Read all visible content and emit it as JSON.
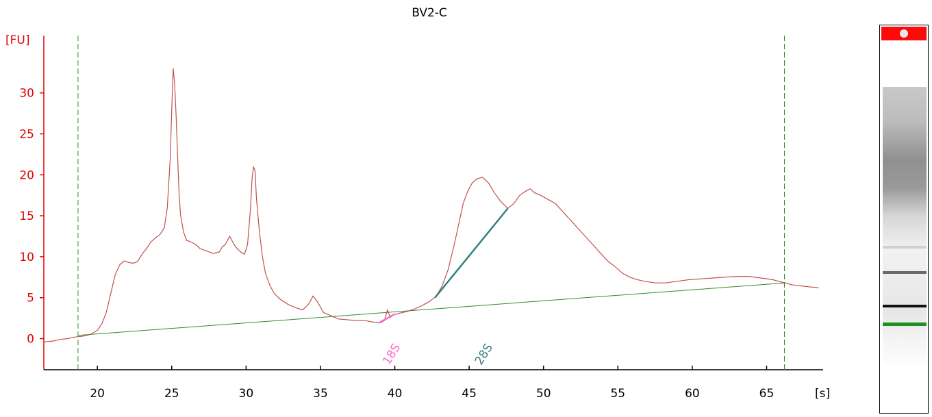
{
  "chart_data": {
    "type": "line",
    "title": "BV2-C",
    "ylabel": "[FU]",
    "xlabel": "[s]",
    "xlim": [
      16.4,
      68.8
    ],
    "ylim": [
      -3.8,
      37.0
    ],
    "xticks": [
      20,
      25,
      30,
      35,
      40,
      45,
      50,
      55,
      60,
      65
    ],
    "yticks": [
      0,
      5,
      10,
      15,
      20,
      25,
      30
    ],
    "grid": false,
    "colors": {
      "trace": "#c0504d",
      "baseline": "#2e8b2e",
      "axis": "#e00000",
      "marker_18s": "#ff66cc",
      "marker_28s": "#2f7f7f",
      "window": "#2e8b2e"
    },
    "window_markers": [
      18.7,
      66.2
    ],
    "baseline": {
      "x": [
        18.7,
        66.2
      ],
      "y": [
        0.4,
        6.8
      ]
    },
    "peaks": [
      {
        "label": "18S",
        "x": 39.6,
        "segment_x": [
          39.0,
          40.0
        ],
        "segment_y": [
          2.0,
          3.0
        ]
      },
      {
        "label": "28S",
        "x": 45.8,
        "segment_x": [
          42.7,
          47.6
        ],
        "segment_y": [
          5.0,
          15.9
        ]
      }
    ],
    "series": [
      {
        "x": [
          16.4,
          17.0,
          17.5,
          18.0,
          18.5,
          19.0,
          19.5,
          20.0,
          20.3,
          20.6,
          20.9,
          21.2,
          21.5,
          21.8,
          22.1,
          22.4,
          22.7,
          23.0,
          23.3,
          23.6,
          23.9,
          24.2,
          24.5,
          24.7,
          24.9,
          25.0,
          25.1,
          25.2,
          25.3,
          25.4,
          25.5,
          25.6,
          25.8,
          26.0,
          26.3,
          26.6,
          26.9,
          27.2,
          27.5,
          27.8,
          28.0,
          28.2,
          28.4,
          28.6,
          28.9,
          29.1,
          29.3,
          29.5,
          29.7,
          29.9,
          30.1,
          30.3,
          30.4,
          30.5,
          30.6,
          30.7,
          30.9,
          31.1,
          31.3,
          31.6,
          31.9,
          32.3,
          32.8,
          33.3,
          33.8,
          34.2,
          34.5,
          34.8,
          35.2,
          35.7,
          36.2,
          36.8,
          37.4,
          38.0,
          38.6,
          39.0,
          39.3,
          39.5,
          39.7,
          39.9,
          40.3,
          40.8,
          41.3,
          41.8,
          42.3,
          42.8,
          43.2,
          43.6,
          44.0,
          44.3,
          44.6,
          44.9,
          45.2,
          45.5,
          45.9,
          46.3,
          46.7,
          47.1,
          47.6,
          48.0,
          48.4,
          48.8,
          49.1,
          49.4,
          49.8,
          50.3,
          50.8,
          51.3,
          51.8,
          52.3,
          52.8,
          53.3,
          53.8,
          54.3,
          54.8,
          55.3,
          55.8,
          56.3,
          56.8,
          57.5,
          58.2,
          59.0,
          59.8,
          60.6,
          61.4,
          62.2,
          63.0,
          63.8,
          64.6,
          65.4,
          66.0,
          66.3,
          66.6,
          67.0,
          67.5,
          68.0,
          68.5
        ],
        "y": [
          -0.4,
          -0.3,
          -0.1,
          0.0,
          0.2,
          0.3,
          0.5,
          1.0,
          1.8,
          3.2,
          5.5,
          7.8,
          9.0,
          9.5,
          9.3,
          9.2,
          9.4,
          10.3,
          11.0,
          11.8,
          12.3,
          12.7,
          13.5,
          16.0,
          22.0,
          28.0,
          33.0,
          31.0,
          27.0,
          22.0,
          17.5,
          15.0,
          13.0,
          12.0,
          11.8,
          11.5,
          11.0,
          10.8,
          10.6,
          10.4,
          10.5,
          10.6,
          11.2,
          11.5,
          12.5,
          11.8,
          11.2,
          10.8,
          10.5,
          10.3,
          11.5,
          16.0,
          19.5,
          21.0,
          20.5,
          17.0,
          13.0,
          10.0,
          8.0,
          6.5,
          5.5,
          4.8,
          4.2,
          3.8,
          3.5,
          4.2,
          5.2,
          4.5,
          3.2,
          2.8,
          2.4,
          2.3,
          2.2,
          2.2,
          2.0,
          1.9,
          2.2,
          3.5,
          2.6,
          2.9,
          3.1,
          3.3,
          3.6,
          4.0,
          4.5,
          5.2,
          6.5,
          8.5,
          11.5,
          14.0,
          16.5,
          18.0,
          19.0,
          19.5,
          19.7,
          19.0,
          17.8,
          16.8,
          15.9,
          16.5,
          17.5,
          18.0,
          18.3,
          17.8,
          17.5,
          17.0,
          16.5,
          15.5,
          14.5,
          13.5,
          12.5,
          11.5,
          10.5,
          9.5,
          8.8,
          8.0,
          7.5,
          7.2,
          7.0,
          6.8,
          6.8,
          7.0,
          7.2,
          7.3,
          7.4,
          7.5,
          7.6,
          7.6,
          7.4,
          7.2,
          6.9,
          6.8,
          6.6,
          6.5,
          6.4,
          6.3,
          6.2
        ]
      }
    ]
  }
}
